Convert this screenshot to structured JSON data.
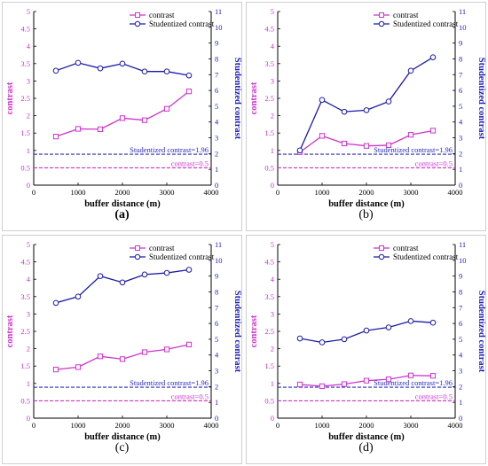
{
  "colors": {
    "contrast": "#cc33cc",
    "studentized": "#1a1aa6",
    "contrast_axis": "#cc33cc",
    "studentized_axis": "#2020c0",
    "threshold_s": "#2a2abf",
    "threshold_c": "#cc33cc"
  },
  "chart_data": [
    {
      "type": "line",
      "panel_label": "(a)",
      "x": [
        500,
        1000,
        1500,
        2000,
        2500,
        3000,
        3500
      ],
      "xlabel": "buffer distance (m)",
      "ylabel": "contrast",
      "y2label": "Studentized contrast",
      "xlim": [
        0,
        4000
      ],
      "xticks": [
        "0",
        "1000",
        "2000",
        "3000",
        "4000"
      ],
      "ylim": [
        0,
        5
      ],
      "yticks": [
        "0",
        "0.5",
        "1",
        "1.5",
        "2",
        "2.5",
        "3",
        "3.5",
        "4",
        "4.5",
        "5"
      ],
      "y2lim": [
        0,
        11
      ],
      "y2ticks": [
        "0",
        "1",
        "2",
        "3",
        "4",
        "5",
        "6",
        "7",
        "8",
        "9",
        "10",
        "11"
      ],
      "series": [
        {
          "name": "contrast",
          "axis": "left",
          "marker": "square",
          "values": [
            1.4,
            1.62,
            1.61,
            1.93,
            1.87,
            2.2,
            2.7
          ]
        },
        {
          "name": "Studentized contrast",
          "axis": "right",
          "marker": "circle",
          "values": [
            7.25,
            7.75,
            7.4,
            7.7,
            7.2,
            7.2,
            6.95
          ]
        }
      ],
      "thresholds": [
        {
          "label": "Studentized contrast=1.96",
          "axis": "right",
          "value": 1.96
        },
        {
          "label": "contrast=0.5",
          "axis": "left",
          "value": 0.5
        }
      ],
      "legend": "top-right"
    },
    {
      "type": "line",
      "panel_label": "(b)",
      "x": [
        500,
        1000,
        1500,
        2000,
        2500,
        3000,
        3500
      ],
      "xlabel": "buffer distance (m)",
      "ylabel": "contrast",
      "y2label": "Studentized contrast",
      "xlim": [
        0,
        4000
      ],
      "xticks": [
        "0",
        "1000",
        "2000",
        "3000",
        "4000"
      ],
      "ylim": [
        0,
        5
      ],
      "yticks": [
        "0",
        "0.5",
        "1",
        "1.5",
        "2",
        "2.5",
        "3",
        "3.5",
        "4",
        "4.5",
        "5"
      ],
      "y2lim": [
        0,
        11
      ],
      "y2ticks": [
        "0",
        "1",
        "2",
        "3",
        "4",
        "5",
        "6",
        "7",
        "8",
        "9",
        "10",
        "11"
      ],
      "series": [
        {
          "name": "contrast",
          "axis": "left",
          "marker": "square",
          "values": [
            0.95,
            1.42,
            1.2,
            1.13,
            1.15,
            1.45,
            1.57
          ]
        },
        {
          "name": "Studentized contrast",
          "axis": "right",
          "marker": "circle",
          "values": [
            2.2,
            5.4,
            4.65,
            4.75,
            5.3,
            7.25,
            8.1
          ]
        }
      ],
      "thresholds": [
        {
          "label": "Studentized contrast=1.96",
          "axis": "right",
          "value": 1.96
        },
        {
          "label": "contrast=0.5",
          "axis": "left",
          "value": 0.5
        }
      ],
      "legend": "top-right"
    },
    {
      "type": "line",
      "panel_label": "(c)",
      "x": [
        500,
        1000,
        1500,
        2000,
        2500,
        3000,
        3500
      ],
      "xlabel": "buffer distance (m)",
      "ylabel": "contrast",
      "y2label": "Studentized contrast",
      "xlim": [
        0,
        4000
      ],
      "xticks": [
        "0",
        "1000",
        "2000",
        "3000",
        "4000"
      ],
      "ylim": [
        0,
        5
      ],
      "yticks": [
        "0",
        "0.5",
        "1",
        "1.5",
        "2",
        "2.5",
        "3",
        "3.5",
        "4",
        "4.5",
        "5"
      ],
      "y2lim": [
        0,
        11
      ],
      "y2ticks": [
        "0",
        "1",
        "2",
        "3",
        "4",
        "5",
        "6",
        "7",
        "8",
        "9",
        "10",
        "11"
      ],
      "series": [
        {
          "name": "contrast",
          "axis": "left",
          "marker": "square",
          "values": [
            1.4,
            1.47,
            1.78,
            1.7,
            1.9,
            1.98,
            2.12
          ]
        },
        {
          "name": "Studentized contrast",
          "axis": "right",
          "marker": "circle",
          "values": [
            7.3,
            7.7,
            9.0,
            8.6,
            9.1,
            9.2,
            9.4
          ]
        }
      ],
      "thresholds": [
        {
          "label": "Studentized contrast=1.96",
          "axis": "right",
          "value": 1.96
        },
        {
          "label": "contrast=0.5",
          "axis": "left",
          "value": 0.5
        }
      ],
      "legend": "top-right"
    },
    {
      "type": "line",
      "panel_label": "(d)",
      "x": [
        500,
        1000,
        1500,
        2000,
        2500,
        3000,
        3500
      ],
      "xlabel": "buffer distance (m)",
      "ylabel": "contrast",
      "y2label": "Studentized contrast",
      "xlim": [
        0,
        4000
      ],
      "xticks": [
        "0",
        "1000",
        "2000",
        "3000",
        "4000"
      ],
      "ylim": [
        0,
        5
      ],
      "yticks": [
        "0",
        "0.5",
        "1",
        "1.5",
        "2",
        "2.5",
        "3",
        "3.5",
        "4",
        "4.5",
        "5"
      ],
      "y2lim": [
        0,
        11
      ],
      "y2ticks": [
        "0",
        "1",
        "2",
        "3",
        "4",
        "5",
        "6",
        "7",
        "8",
        "9",
        "10",
        "11"
      ],
      "series": [
        {
          "name": "contrast",
          "axis": "left",
          "marker": "square",
          "values": [
            0.97,
            0.92,
            0.98,
            1.08,
            1.12,
            1.23,
            1.22
          ]
        },
        {
          "name": "Studentized contrast",
          "axis": "right",
          "marker": "circle",
          "values": [
            5.05,
            4.8,
            5.0,
            5.55,
            5.75,
            6.15,
            6.05
          ]
        }
      ],
      "thresholds": [
        {
          "label": "Studentized contrast=1.96",
          "axis": "right",
          "value": 1.96
        },
        {
          "label": "contrast=0.5",
          "axis": "left",
          "value": 0.5
        }
      ],
      "legend": "top-right"
    }
  ]
}
